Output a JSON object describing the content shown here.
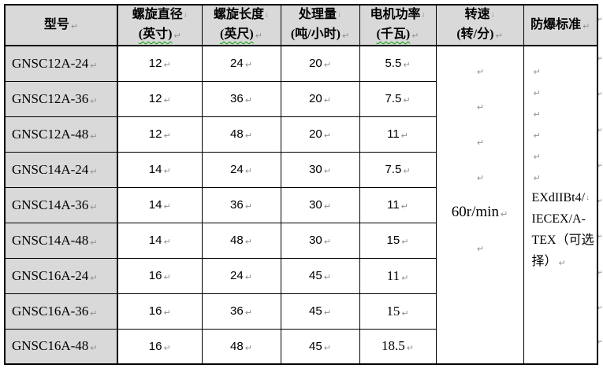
{
  "marks": {
    "pilcrow": "↵",
    "line_break": "↓"
  },
  "colors": {
    "header_bg": "#d9d9d9",
    "border": "#000000",
    "spellcheck_green": "#00a000",
    "format_mark_gray": "#8f8f8f"
  },
  "table": {
    "headers": [
      {
        "line1": "型号",
        "line2": ""
      },
      {
        "line1": "螺旋直径",
        "line2": "(英寸)"
      },
      {
        "line1": "螺旋长度",
        "line2": "(英尺)"
      },
      {
        "line1": "处理量",
        "line2": "(吨/小时)"
      },
      {
        "line1": "电机功率",
        "line2": "(千瓦)"
      },
      {
        "line1": "转速",
        "line2": "(转/分)"
      },
      {
        "line1": "防爆标准",
        "line2": ""
      }
    ],
    "rows": [
      {
        "model": "GNSC12A-24",
        "diameter": "12",
        "length": "24",
        "capacity": "20",
        "power": "5.5"
      },
      {
        "model": "GNSC12A-36",
        "diameter": "12",
        "length": "36",
        "capacity": "20",
        "power": "7.5"
      },
      {
        "model": "GNSC12A-48",
        "diameter": "12",
        "length": "48",
        "capacity": "20",
        "power": "11"
      },
      {
        "model": "GNSC14A-24",
        "diameter": "14",
        "length": "24",
        "capacity": "30",
        "power": "7.5"
      },
      {
        "model": "GNSC14A-36",
        "diameter": "14",
        "length": "36",
        "capacity": "30",
        "power": "11"
      },
      {
        "model": "GNSC14A-48",
        "diameter": "14",
        "length": "48",
        "capacity": "30",
        "power": "15"
      },
      {
        "model": "GNSC16A-24",
        "diameter": "16",
        "length": "24",
        "capacity": "45",
        "power": "11"
      },
      {
        "model": "GNSC16A-36",
        "diameter": "16",
        "length": "36",
        "capacity": "45",
        "power": "15"
      },
      {
        "model": "GNSC16A-48",
        "diameter": "16",
        "length": "48",
        "capacity": "45",
        "power": "18.5"
      }
    ],
    "speed_cell": {
      "empty_lines_before": 4,
      "value": "60r/min",
      "empty_lines_after": 1
    },
    "standard_cell": {
      "empty_lines_before": 6,
      "lines": [
        "EXdIIBt4/",
        "IECEX/A-",
        "TEX（可选",
        "择）"
      ],
      "full_text": "EXdIIBt4/IECEX/A-TEX（可选择）"
    }
  }
}
